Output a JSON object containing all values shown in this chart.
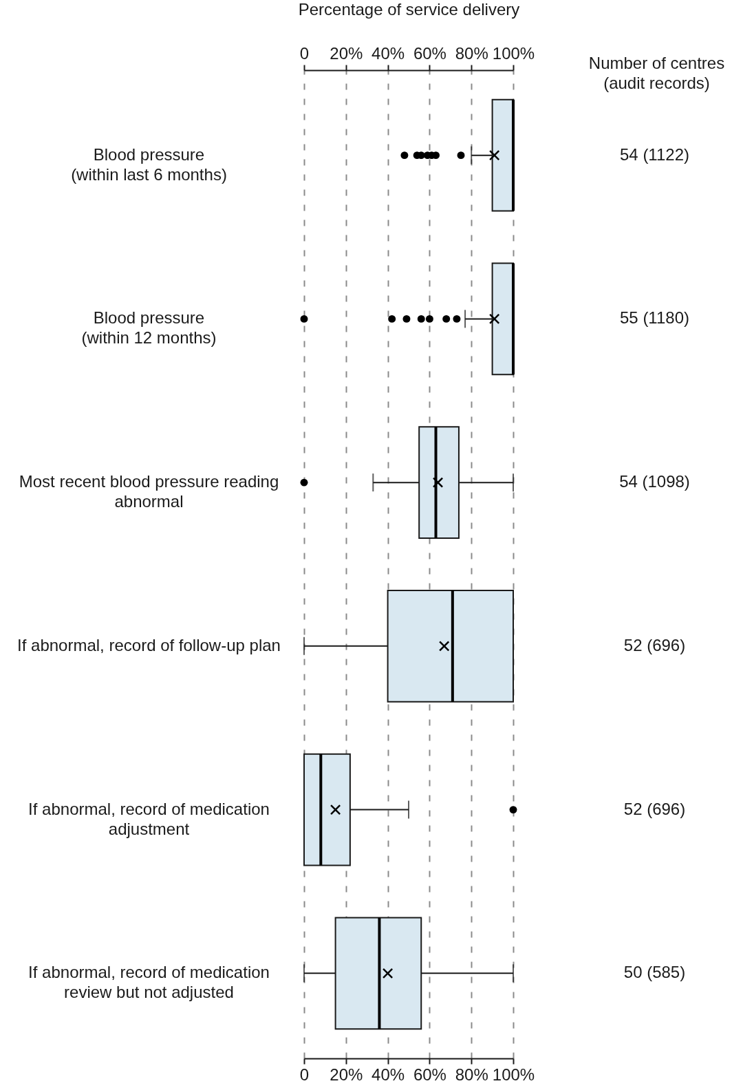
{
  "chart_data": {
    "type": "box",
    "orientation": "horizontal",
    "x2label": "Percentage of service delivery",
    "y2label": "Number of centres\n(audit records)",
    "categories": [
      "Blood pressure\n(within last 6 months)",
      "Blood pressure\n(within 12 months)",
      "Most recent blood pressure reading\nabnormal",
      "If abnormal, record of follow-up plan",
      "If abnormal, record of medication\nadjustment",
      "If abnormal, record of medication\nreview but not adjusted"
    ],
    "y2_categories": [
      "54 (1122)",
      "55 (1180)",
      "54 (1098)",
      "52 (696)",
      "52 (696)",
      "50 (585)"
    ],
    "color": "#d9e8f1",
    "boxes": [
      {
        "low": 80,
        "q1": 90,
        "median": 100,
        "q3": 100,
        "high": 100,
        "mean": 91,
        "outliers": [
          48,
          54,
          56,
          59,
          61,
          63,
          75
        ]
      },
      {
        "low": 77,
        "q1": 90,
        "median": 100,
        "q3": 100,
        "high": 100,
        "mean": 91,
        "outliers": [
          0,
          42,
          49,
          56,
          60,
          68,
          73
        ]
      },
      {
        "low": 33,
        "q1": 55,
        "median": 63,
        "q3": 74,
        "high": 100,
        "mean": 64,
        "outliers": [
          0
        ]
      },
      {
        "low": 0,
        "q1": 40,
        "median": 71,
        "q3": 100,
        "high": 100,
        "mean": 67
      },
      {
        "low": 0,
        "q1": 0,
        "median": 8,
        "q3": 22,
        "high": 50,
        "mean": 15,
        "outliers": [
          100
        ]
      },
      {
        "low": 0,
        "q1": 15,
        "median": 36,
        "q3": 56,
        "high": 100,
        "mean": 40
      }
    ],
    "xlim": [
      0,
      100
    ],
    "xticks": [
      {
        "value": 0,
        "label": "0"
      },
      {
        "value": 20,
        "label": "20%"
      },
      {
        "value": 40,
        "label": "40%"
      },
      {
        "value": 60,
        "label": "60%"
      },
      {
        "value": 80,
        "label": "80%"
      },
      {
        "value": 100,
        "label": "100%"
      }
    ],
    "x2lim": [
      0,
      100
    ],
    "x2ticks": [
      {
        "value": 0,
        "label": "0"
      },
      {
        "value": 20,
        "label": "20%"
      },
      {
        "value": 40,
        "label": "40%"
      },
      {
        "value": 60,
        "label": "60%"
      },
      {
        "value": 80,
        "label": "80%"
      },
      {
        "value": 100,
        "label": "100%"
      }
    ],
    "grid": "x"
  }
}
